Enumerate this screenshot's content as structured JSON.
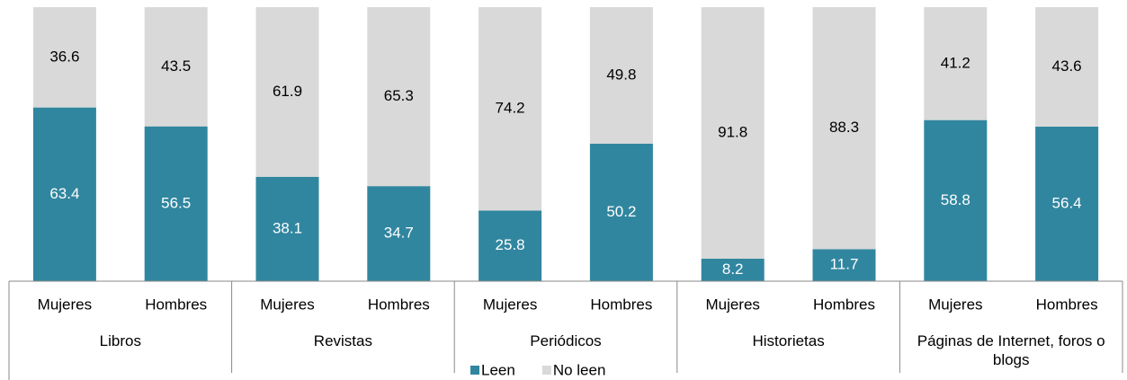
{
  "chart_data": {
    "type": "stacked_bar",
    "categories": [
      "Mujeres",
      "Hombres",
      "Mujeres",
      "Hombres",
      "Mujeres",
      "Hombres",
      "Mujeres",
      "Hombres",
      "Mujeres",
      "Hombres"
    ],
    "groups": [
      "Libros",
      "Revistas",
      "Periódicos",
      "Historietas",
      "Páginas de Internet, foros o blogs"
    ],
    "series": [
      {
        "name": "Leen",
        "color": "#31869f",
        "values": [
          63.4,
          56.5,
          38.1,
          34.7,
          25.8,
          50.2,
          8.2,
          11.7,
          58.8,
          56.4
        ]
      },
      {
        "name": "No leen",
        "color": "#d9d9d9",
        "values": [
          36.6,
          43.5,
          61.9,
          65.3,
          74.2,
          49.8,
          91.8,
          88.3,
          41.2,
          43.6
        ]
      }
    ],
    "ylim": [
      0,
      100
    ],
    "legend": "bottom"
  }
}
